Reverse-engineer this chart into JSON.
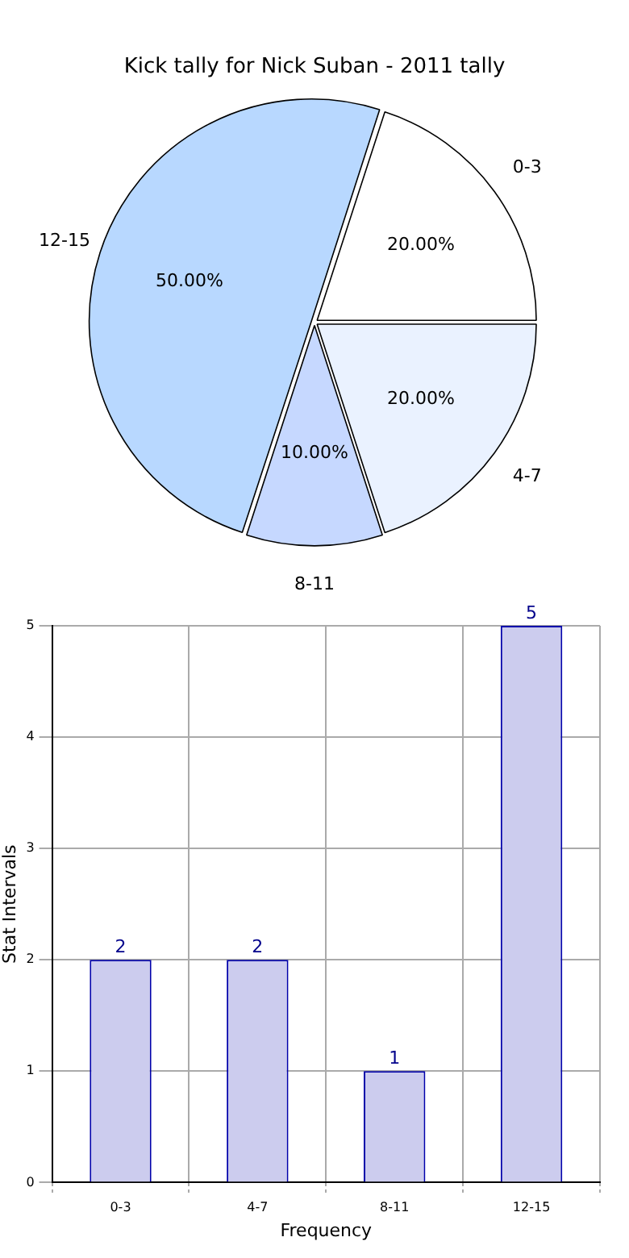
{
  "chart_data": [
    {
      "type": "pie",
      "title": "Kick tally for Nick Suban - 2011 tally",
      "categories": [
        "0-3",
        "4-7",
        "8-11",
        "12-15"
      ],
      "values": [
        20,
        20,
        10,
        50
      ],
      "colors": [
        "#ffffff",
        "#eaf2ff",
        "#c6d8ff",
        "#b8d8ff"
      ],
      "value_labels": [
        "20.00%",
        "20.00%",
        "10.00%",
        "50.00%"
      ],
      "legend": false
    },
    {
      "type": "bar",
      "categories": [
        "0-3",
        "4-7",
        "8-11",
        "12-15"
      ],
      "values": [
        2,
        2,
        1,
        5
      ],
      "color": "#ccccee",
      "xlabel": "Frequency",
      "ylabel": "Stat Intervals",
      "ylim": [
        0,
        5
      ],
      "yticks": [
        0,
        1,
        2,
        3,
        4,
        5
      ],
      "grid": true,
      "data_labels": true,
      "legend": false
    }
  ]
}
